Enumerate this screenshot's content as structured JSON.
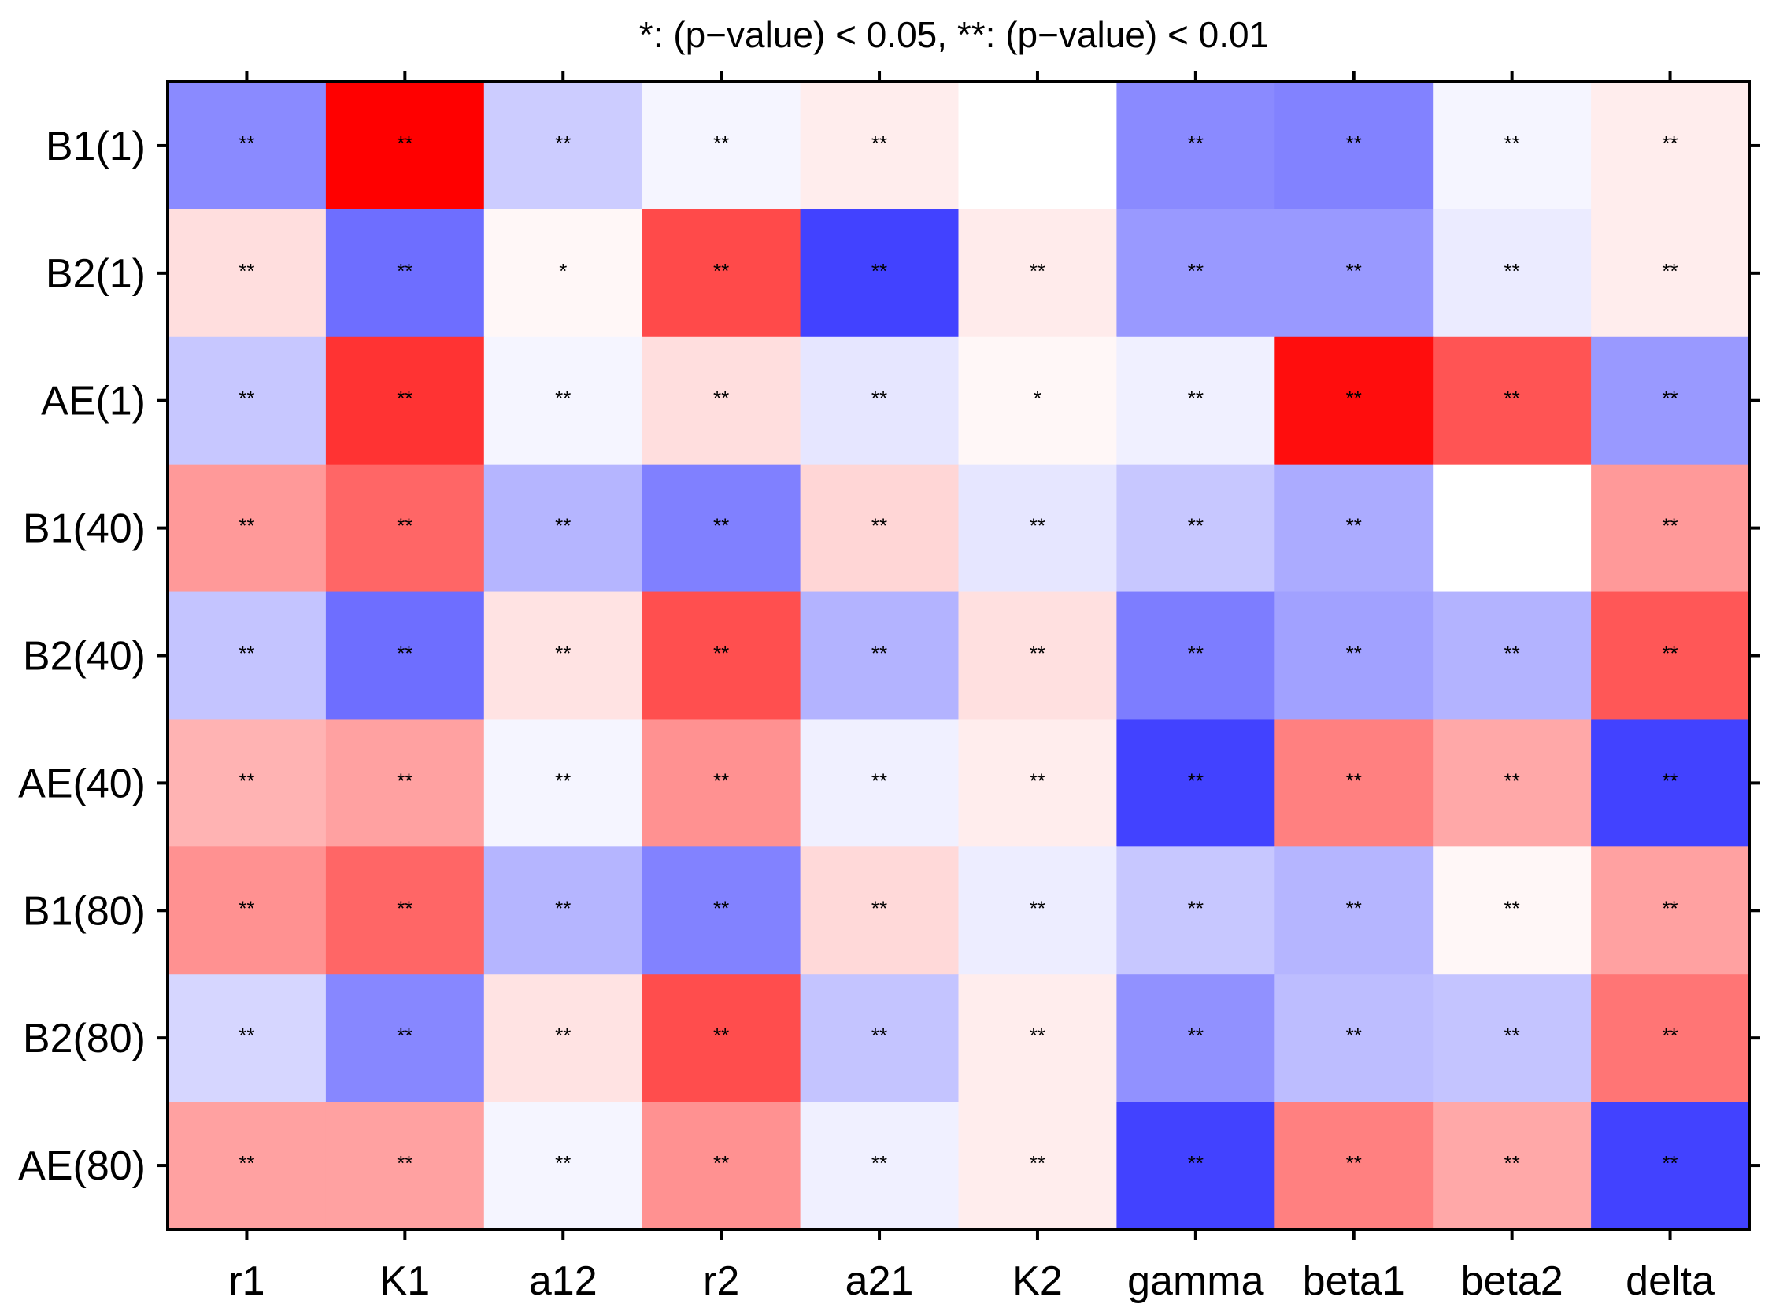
{
  "chart_data": {
    "type": "heatmap",
    "title": "*: (p−value) < 0.05, **: (p−value) < 0.01",
    "xlabel": "",
    "ylabel": "",
    "x_categories": [
      "r1",
      "K1",
      "a12",
      "r2",
      "a21",
      "K2",
      "gamma",
      "beta1",
      "beta2",
      "delta"
    ],
    "y_categories": [
      "B1(1)",
      "B2(1)",
      "AE(1)",
      "B1(40)",
      "B2(40)",
      "AE(40)",
      "B1(80)",
      "B2(80)",
      "AE(80)"
    ],
    "color_scale": {
      "negative": "#0000ff",
      "zero": "#ffffff",
      "positive": "#ff0000",
      "range": [
        -1,
        1
      ]
    },
    "values": [
      [
        -0.46,
        1.0,
        -0.2,
        -0.04,
        0.07,
        0.0,
        -0.46,
        -0.49,
        -0.04,
        0.07
      ],
      [
        0.13,
        -0.57,
        0.03,
        0.71,
        -0.74,
        0.08,
        -0.4,
        -0.4,
        -0.08,
        0.07
      ],
      [
        -0.22,
        0.8,
        -0.04,
        0.13,
        -0.1,
        0.03,
        -0.06,
        0.95,
        0.67,
        -0.4
      ],
      [
        0.4,
        0.6,
        -0.29,
        -0.5,
        0.16,
        -0.1,
        -0.22,
        -0.33,
        0.0,
        0.4
      ],
      [
        -0.23,
        -0.57,
        0.11,
        0.69,
        -0.3,
        0.12,
        -0.51,
        -0.37,
        -0.3,
        0.66
      ],
      [
        0.3,
        0.37,
        -0.04,
        0.43,
        -0.06,
        0.07,
        -0.74,
        0.5,
        0.34,
        -0.74
      ],
      [
        0.43,
        0.6,
        -0.29,
        -0.49,
        0.15,
        -0.07,
        -0.22,
        -0.29,
        0.03,
        0.37
      ],
      [
        -0.16,
        -0.47,
        0.11,
        0.7,
        -0.23,
        0.07,
        -0.43,
        -0.26,
        -0.23,
        0.54
      ],
      [
        0.37,
        0.37,
        -0.04,
        0.43,
        -0.06,
        0.07,
        -0.74,
        0.5,
        0.34,
        -0.74
      ]
    ],
    "significance": [
      [
        "**",
        "**",
        "**",
        "**",
        "**",
        "",
        "**",
        "**",
        "**",
        "**"
      ],
      [
        "**",
        "**",
        "*",
        "**",
        "**",
        "**",
        "**",
        "**",
        "**",
        "**"
      ],
      [
        "**",
        "**",
        "**",
        "**",
        "**",
        "*",
        "**",
        "**",
        "**",
        "**"
      ],
      [
        "**",
        "**",
        "**",
        "**",
        "**",
        "**",
        "**",
        "**",
        "",
        "**"
      ],
      [
        "**",
        "**",
        "**",
        "**",
        "**",
        "**",
        "**",
        "**",
        "**",
        "**"
      ],
      [
        "**",
        "**",
        "**",
        "**",
        "**",
        "**",
        "**",
        "**",
        "**",
        "**"
      ],
      [
        "**",
        "**",
        "**",
        "**",
        "**",
        "**",
        "**",
        "**",
        "**",
        "**"
      ],
      [
        "**",
        "**",
        "**",
        "**",
        "**",
        "**",
        "**",
        "**",
        "**",
        "**"
      ],
      [
        "**",
        "**",
        "**",
        "**",
        "**",
        "**",
        "**",
        "**",
        "**",
        "**"
      ]
    ]
  }
}
